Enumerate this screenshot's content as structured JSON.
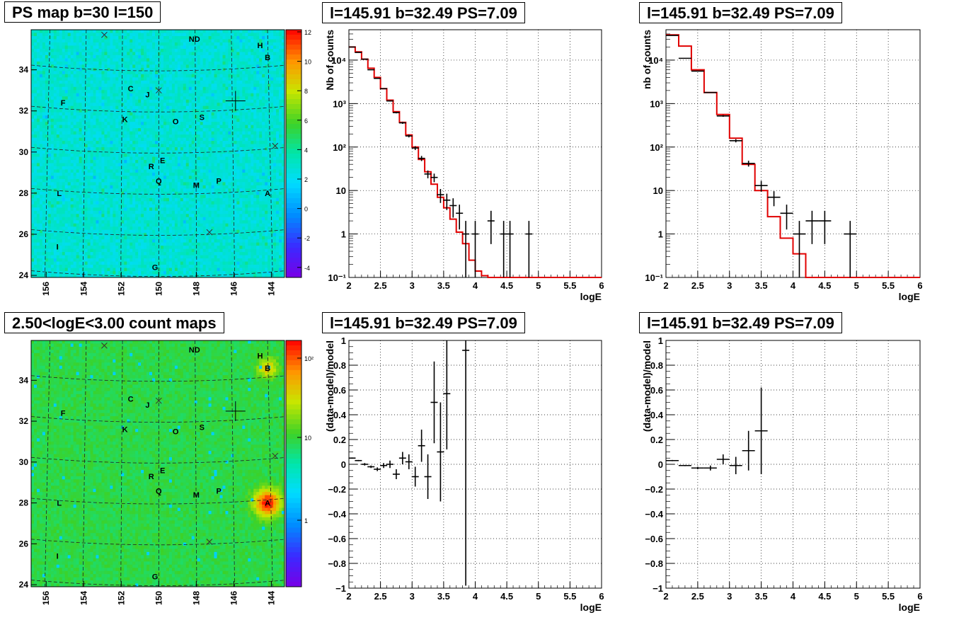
{
  "titles": {
    "map_ps": "PS map b=30 l=150",
    "map_counts": "2.50<logE<3.00 count maps",
    "spec_a": "l=145.91 b=32.49 PS=7.09",
    "spec_b": "l=145.91 b=32.49 PS=7.09",
    "res_a": "l=145.91 b=32.49 PS=7.09",
    "res_b": "l=145.91 b=32.49 PS=7.09"
  },
  "map_common": {
    "x_ticks": [
      "156",
      "154",
      "152",
      "150",
      "148",
      "146",
      "144"
    ],
    "y_ticks": [
      "24",
      "26",
      "28",
      "30",
      "32",
      "34"
    ],
    "sources": [
      {
        "label": "ND",
        "l": 148.1,
        "b": 35.5
      },
      {
        "label": "H",
        "l": 144.6,
        "b": 35.2
      },
      {
        "label": "B",
        "l": 144.2,
        "b": 34.6
      },
      {
        "label": "C",
        "l": 151.5,
        "b": 33.1
      },
      {
        "label": "J",
        "l": 150.6,
        "b": 32.8
      },
      {
        "label": "F",
        "l": 155.1,
        "b": 32.4
      },
      {
        "label": "K",
        "l": 151.8,
        "b": 31.6
      },
      {
        "label": "O",
        "l": 149.1,
        "b": 31.5
      },
      {
        "label": "S",
        "l": 147.7,
        "b": 31.7
      },
      {
        "label": "E",
        "l": 149.8,
        "b": 29.6
      },
      {
        "label": "R",
        "l": 150.4,
        "b": 29.3
      },
      {
        "label": "Q",
        "l": 150.0,
        "b": 28.6
      },
      {
        "label": "M",
        "l": 148.0,
        "b": 28.4
      },
      {
        "label": "P",
        "l": 146.8,
        "b": 28.6
      },
      {
        "label": "A",
        "l": 144.2,
        "b": 28.0
      },
      {
        "label": "L",
        "l": 155.3,
        "b": 28.0
      },
      {
        "label": "I",
        "l": 155.4,
        "b": 25.4
      },
      {
        "label": "G",
        "l": 150.2,
        "b": 24.4
      }
    ],
    "crosses": [
      {
        "l": 152.9,
        "b": 35.7
      },
      {
        "l": 150.0,
        "b": 33.0
      },
      {
        "l": 147.3,
        "b": 26.1
      },
      {
        "l": 143.8,
        "b": 30.3
      }
    ],
    "target": {
      "l": 145.91,
      "b": 32.49
    }
  },
  "map_ps": {
    "colorbar_ticks": [
      "12",
      "10",
      "8",
      "6",
      "4",
      "2",
      "0",
      "-2",
      "-4"
    ]
  },
  "map_counts": {
    "colorbar_ticks": [
      "10²",
      "10",
      "1"
    ]
  },
  "chart_data": [
    {
      "type": "line",
      "panel": "spec_a",
      "xlabel": "logE",
      "ylabel": "Nb of counts",
      "xlim": [
        2,
        6
      ],
      "ylim": [
        0.1,
        50000
      ],
      "yscale": "log",
      "grid": true,
      "x_ticks": [
        "2",
        "2.5",
        "3",
        "3.5",
        "4",
        "4.5",
        "5",
        "5.5",
        "6"
      ],
      "y_ticks": [
        "10⁻¹",
        "1",
        "10",
        "10²",
        "10³",
        "10⁴"
      ],
      "data_points": [
        [
          2.05,
          20000
        ],
        [
          2.15,
          15000
        ],
        [
          2.25,
          10500
        ],
        [
          2.35,
          6000
        ],
        [
          2.45,
          3800
        ],
        [
          2.55,
          2200
        ],
        [
          2.65,
          1150
        ],
        [
          2.75,
          620
        ],
        [
          2.85,
          360
        ],
        [
          2.95,
          180
        ],
        [
          3.05,
          95
        ],
        [
          3.15,
          55
        ],
        [
          3.25,
          24
        ],
        [
          3.35,
          20
        ],
        [
          3.45,
          8
        ],
        [
          3.55,
          6
        ],
        [
          3.65,
          4.5
        ],
        [
          3.75,
          3
        ],
        [
          3.85,
          1
        ],
        [
          4.0,
          1
        ],
        [
          4.25,
          2
        ],
        [
          4.45,
          1
        ],
        [
          4.55,
          1
        ],
        [
          4.85,
          1
        ]
      ],
      "model_edges": [
        2,
        2.1,
        2.2,
        2.3,
        2.4,
        2.5,
        2.6,
        2.7,
        2.8,
        2.9,
        3.0,
        3.1,
        3.2,
        3.3,
        3.4,
        3.5,
        3.6,
        3.7,
        3.8,
        3.9,
        4.0,
        4.1,
        4.2,
        6.0
      ],
      "model_values": [
        20000,
        15500,
        10500,
        6500,
        4000,
        2200,
        1200,
        650,
        370,
        190,
        100,
        52,
        27,
        14,
        7,
        4,
        2.2,
        1.1,
        0.6,
        0.25,
        0.14,
        0.11,
        0.1
      ]
    },
    {
      "type": "line",
      "panel": "spec_b",
      "xlabel": "logE",
      "ylabel": "nb of counts",
      "xlim": [
        2,
        6
      ],
      "ylim": [
        0.1,
        50000
      ],
      "yscale": "log",
      "grid": true,
      "x_ticks": [
        "2",
        "2.5",
        "3",
        "3.5",
        "4",
        "4.5",
        "5",
        "5.5",
        "6"
      ],
      "y_ticks": [
        "10⁻¹",
        "1",
        "10",
        "10²",
        "10³",
        "10⁴"
      ],
      "data_points": [
        [
          2.1,
          37000
        ],
        [
          2.3,
          11000
        ],
        [
          2.5,
          5600
        ],
        [
          2.7,
          1800
        ],
        [
          2.9,
          520
        ],
        [
          3.1,
          140
        ],
        [
          3.3,
          42
        ],
        [
          3.5,
          13
        ],
        [
          3.7,
          7
        ],
        [
          3.9,
          3
        ],
        [
          4.1,
          1
        ],
        [
          4.3,
          2
        ],
        [
          4.5,
          2
        ],
        [
          4.9,
          1
        ]
      ],
      "model_edges": [
        2,
        2.2,
        2.4,
        2.6,
        2.8,
        3.0,
        3.2,
        3.4,
        3.6,
        3.8,
        4.0,
        4.2,
        6.0
      ],
      "model_values": [
        38000,
        21000,
        6000,
        1800,
        560,
        160,
        40,
        10,
        2.5,
        0.8,
        0.35,
        0.1
      ]
    },
    {
      "type": "scatter",
      "panel": "res_a",
      "xlabel": "logE",
      "ylabel": "(data-model)/model",
      "xlim": [
        2,
        6
      ],
      "ylim": [
        -1,
        1
      ],
      "grid": true,
      "x_ticks": [
        "2",
        "2.5",
        "3",
        "3.5",
        "4",
        "4.5",
        "5",
        "5.5",
        "6"
      ],
      "y_ticks": [
        "−1",
        "−0.8",
        "−0.6",
        "−0.4",
        "−0.2",
        "0",
        "0.2",
        "0.4",
        "0.6",
        "0.8",
        "1"
      ],
      "points": [
        [
          2.05,
          0.05
        ],
        [
          2.15,
          0.03
        ],
        [
          2.25,
          0.0
        ],
        [
          2.35,
          -0.02
        ],
        [
          2.45,
          -0.04
        ],
        [
          2.55,
          -0.01
        ],
        [
          2.65,
          0.0
        ],
        [
          2.75,
          -0.08
        ],
        [
          2.85,
          0.05
        ],
        [
          2.95,
          0.02
        ],
        [
          3.05,
          -0.1
        ],
        [
          3.15,
          0.15
        ],
        [
          3.25,
          -0.1
        ],
        [
          3.35,
          0.5
        ],
        [
          3.45,
          0.1
        ],
        [
          3.55,
          0.57
        ],
        [
          3.85,
          0.92
        ]
      ],
      "errors": [
        0.005,
        0.005,
        0.01,
        0.01,
        0.015,
        0.02,
        0.03,
        0.04,
        0.05,
        0.06,
        0.08,
        0.13,
        0.18,
        0.33,
        0.4,
        0.45,
        1.9
      ]
    },
    {
      "type": "scatter",
      "panel": "res_b",
      "xlabel": "logE",
      "ylabel": "(data-model)/model",
      "xlim": [
        2,
        6
      ],
      "ylim": [
        -1,
        1
      ],
      "grid": true,
      "x_ticks": [
        "2",
        "2.5",
        "3",
        "3.5",
        "4",
        "4.5",
        "5",
        "5.5",
        "6"
      ],
      "y_ticks": [
        "−1",
        "−0.8",
        "−0.6",
        "−0.4",
        "−0.2",
        "0",
        "0.2",
        "0.4",
        "0.6",
        "0.8",
        "1"
      ],
      "points": [
        [
          2.1,
          0.03
        ],
        [
          2.3,
          -0.01
        ],
        [
          2.5,
          -0.03
        ],
        [
          2.7,
          -0.03
        ],
        [
          2.9,
          0.04
        ],
        [
          3.1,
          -0.01
        ],
        [
          3.3,
          0.11
        ],
        [
          3.5,
          0.27
        ]
      ],
      "errors": [
        0.005,
        0.005,
        0.01,
        0.02,
        0.04,
        0.07,
        0.16,
        0.35
      ]
    }
  ]
}
